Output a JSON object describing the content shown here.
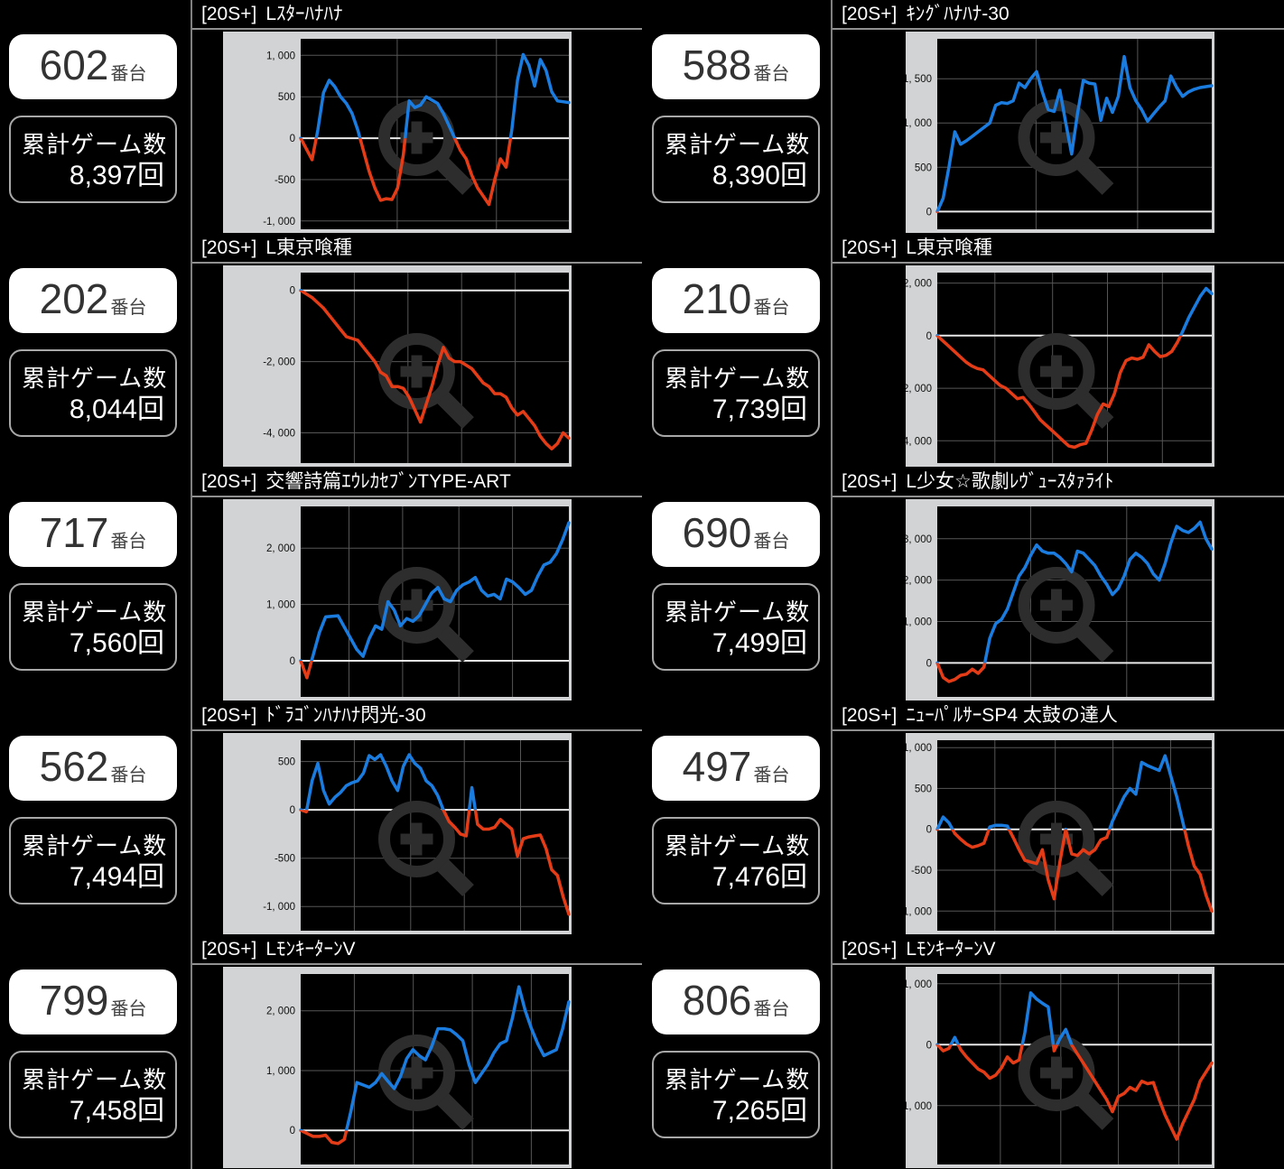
{
  "labels": {
    "unit_suffix": "番台",
    "games_label": "累計ゲーム数"
  },
  "colors": {
    "line_up": "#1b7ce0",
    "line_down": "#e53c18",
    "frame_bg": "#d2d3d4",
    "plot_bg": "#000000",
    "grid": "#565656",
    "zero_line": "#e8e8e8",
    "watermark": "#2d2d2d",
    "badge_bg": "#ffffff",
    "badge_text": "#333333",
    "panel_text": "#ffffff"
  },
  "panels": [
    {
      "machine_no": "602",
      "games_value": "8,397回",
      "title_tag": "[20S+]",
      "title_name": "Lｽﾀｰﾊﾅﾊﾅ",
      "chart_data": {
        "type": "line",
        "ylim": [
          -1100,
          1200
        ],
        "yticks": [
          1000,
          500,
          0,
          -500,
          -1000
        ],
        "ytick_labels": [
          "1, 000",
          "500",
          "0",
          "-500",
          "-1, 000"
        ],
        "vgrid": [
          0.36,
          0.73
        ],
        "color_rule": "blue_above_zero_red_below",
        "values": [
          0,
          -130,
          -260,
          100,
          550,
          700,
          620,
          500,
          420,
          300,
          100,
          -150,
          -400,
          -600,
          -750,
          -730,
          -740,
          -600,
          -200,
          450,
          370,
          400,
          500,
          460,
          420,
          300,
          150,
          0,
          -150,
          -250,
          -450,
          -600,
          -700,
          -800,
          -500,
          -250,
          -350,
          100,
          700,
          1010,
          880,
          630,
          950,
          820,
          560,
          450,
          440,
          430
        ]
      }
    },
    {
      "machine_no": "588",
      "games_value": "8,390回",
      "title_tag": "[20S+]",
      "title_name": "ｷﾝｸﾞﾊﾅﾊﾅ-30",
      "chart_data": {
        "type": "line",
        "ylim": [
          -200,
          1950
        ],
        "yticks": [
          1500,
          1000,
          500,
          0
        ],
        "ytick_labels": [
          "1, 500",
          "1, 000",
          "500",
          "0"
        ],
        "vgrid": [
          0.36,
          0.73
        ],
        "color_rule": "blue_above_zero_red_below",
        "values": [
          0,
          150,
          500,
          900,
          760,
          800,
          850,
          900,
          950,
          1000,
          1200,
          1230,
          1220,
          1250,
          1450,
          1400,
          1500,
          1580,
          1350,
          1150,
          1130,
          1370,
          1000,
          650,
          1100,
          1480,
          1450,
          1440,
          1030,
          1280,
          1120,
          1300,
          1750,
          1400,
          1250,
          1150,
          1020,
          1100,
          1180,
          1250,
          1530,
          1400,
          1300,
          1350,
          1380,
          1400,
          1410,
          1420
        ]
      }
    },
    {
      "machine_no": "202",
      "games_value": "8,044回",
      "title_tag": "[20S+]",
      "title_name": "L東京喰種",
      "chart_data": {
        "type": "line",
        "ylim": [
          -4850,
          500
        ],
        "yticks": [
          0,
          -2000,
          -4000
        ],
        "ytick_labels": [
          "0",
          "-2, 000",
          "-4, 000"
        ],
        "vgrid": [
          0.2,
          0.4,
          0.6,
          0.8
        ],
        "color_rule": "blue_above_zero_red_below",
        "values": [
          0,
          -100,
          -200,
          -350,
          -500,
          -700,
          -900,
          -1100,
          -1300,
          -1350,
          -1400,
          -1600,
          -1800,
          -2000,
          -2300,
          -2400,
          -2700,
          -2700,
          -2750,
          -3000,
          -3350,
          -3700,
          -3200,
          -2700,
          -2100,
          -1600,
          -1900,
          -2000,
          -2000,
          -2100,
          -2200,
          -2400,
          -2600,
          -2700,
          -2900,
          -2900,
          -3000,
          -3300,
          -3500,
          -3400,
          -3600,
          -3800,
          -4100,
          -4300,
          -4450,
          -4300,
          -4000,
          -4150
        ]
      }
    },
    {
      "machine_no": "210",
      "games_value": "7,739回",
      "title_tag": "[20S+]",
      "title_name": "L東京喰種",
      "chart_data": {
        "type": "line",
        "ylim": [
          -4850,
          2400
        ],
        "yticks": [
          2000,
          0,
          -2000,
          -4000
        ],
        "ytick_labels": [
          "2, 000",
          "0",
          "-2, 000",
          "-4, 000"
        ],
        "vgrid": [
          0.21,
          0.42,
          0.62,
          0.82
        ],
        "color_rule": "blue_above_zero_red_below",
        "values": [
          0,
          -200,
          -400,
          -600,
          -800,
          -1000,
          -1150,
          -1250,
          -1300,
          -1500,
          -1700,
          -1900,
          -2000,
          -2200,
          -2400,
          -2350,
          -2600,
          -2900,
          -3200,
          -3400,
          -3600,
          -3800,
          -4000,
          -4200,
          -4250,
          -4150,
          -4100,
          -3600,
          -3000,
          -2600,
          -2700,
          -2200,
          -1400,
          -950,
          -850,
          -900,
          -820,
          -350,
          -600,
          -800,
          -750,
          -600,
          -250,
          200,
          700,
          1100,
          1500,
          1800,
          1600
        ]
      }
    },
    {
      "machine_no": "717",
      "games_value": "7,560回",
      "title_tag": "[20S+]",
      "title_name": "交響詩篇ｴｳﾚｶｾﾌﾞﾝTYPE-ART",
      "chart_data": {
        "type": "line",
        "ylim": [
          -640,
          2740
        ],
        "yticks": [
          2000,
          1000,
          0
        ],
        "ytick_labels": [
          "2, 000",
          "1, 000",
          "0"
        ],
        "vgrid": [
          0.18,
          0.38,
          0.59,
          0.79
        ],
        "color_rule": "blue_above_zero_red_below",
        "values": [
          0,
          -300,
          100,
          500,
          780,
          790,
          800,
          600,
          400,
          200,
          80,
          400,
          620,
          560,
          1050,
          900,
          620,
          750,
          700,
          800,
          1000,
          1200,
          1300,
          1100,
          1050,
          1250,
          1350,
          1400,
          1480,
          1250,
          1150,
          1180,
          1100,
          1450,
          1400,
          1300,
          1180,
          1250,
          1500,
          1700,
          1750,
          1900,
          2150,
          2450
        ]
      }
    },
    {
      "machine_no": "690",
      "games_value": "7,499回",
      "title_tag": "[20S+]",
      "title_name": "L少女☆歌劇ﾚｳﾞｭｰｽﾀｧﾗｲﾄ",
      "chart_data": {
        "type": "line",
        "ylim": [
          -820,
          3780
        ],
        "yticks": [
          3000,
          2000,
          1000,
          0
        ],
        "ytick_labels": [
          "3, 000",
          "2, 000",
          "1, 000",
          "0"
        ],
        "vgrid": [
          0.34,
          0.69
        ],
        "color_rule": "blue_above_zero_red_below",
        "values": [
          0,
          -350,
          -450,
          -400,
          -300,
          -270,
          -150,
          -250,
          -100,
          600,
          950,
          1050,
          1300,
          1700,
          2100,
          2300,
          2600,
          2850,
          2700,
          2650,
          2650,
          2550,
          2400,
          2200,
          2700,
          2650,
          2500,
          2350,
          2100,
          1900,
          1650,
          1800,
          2100,
          2500,
          2650,
          2550,
          2400,
          2150,
          2000,
          2400,
          2900,
          3300,
          3200,
          3150,
          3250,
          3400,
          3000,
          2750
        ]
      }
    },
    {
      "machine_no": "562",
      "games_value": "7,494回",
      "title_tag": "[20S+]",
      "title_name": "ﾄﾞﾗｺﾞﾝﾊﾅﾊﾅ閃光-30",
      "chart_data": {
        "type": "line",
        "ylim": [
          -1250,
          720
        ],
        "yticks": [
          500,
          0,
          -500,
          -1000
        ],
        "ytick_labels": [
          "500",
          "0",
          "-500",
          "-1, 000"
        ],
        "vgrid": [
          0.2,
          0.41,
          0.61,
          0.82
        ],
        "color_rule": "blue_above_zero_red_below",
        "values": [
          0,
          -20,
          300,
          480,
          200,
          60,
          130,
          180,
          250,
          280,
          300,
          380,
          560,
          520,
          570,
          450,
          300,
          200,
          450,
          570,
          480,
          430,
          300,
          250,
          150,
          0,
          -120,
          -180,
          -250,
          -270,
          230,
          -150,
          -200,
          -200,
          -180,
          -100,
          -150,
          -200,
          -480,
          -300,
          -280,
          -270,
          -260,
          -400,
          -620,
          -680,
          -900,
          -1080
        ]
      }
    },
    {
      "machine_no": "497",
      "games_value": "7,476回",
      "title_tag": "[20S+]",
      "title_name": "ﾆｭｰﾊﾟﾙｻｰSP4 太鼓の達人",
      "chart_data": {
        "type": "line",
        "ylim": [
          -1240,
          1090
        ],
        "yticks": [
          1000,
          500,
          0,
          -500,
          -1000
        ],
        "ytick_labels": [
          "1, 000",
          "500",
          "0",
          "-500",
          "-1, 000"
        ],
        "vgrid": [
          0.21,
          0.43,
          0.64,
          0.85
        ],
        "color_rule": "blue_above_zero_red_below",
        "values": [
          0,
          150,
          80,
          -50,
          -120,
          -180,
          -220,
          -200,
          -170,
          30,
          50,
          50,
          40,
          -100,
          -250,
          -380,
          -400,
          -420,
          -250,
          -620,
          -850,
          -400,
          0,
          -300,
          -320,
          -250,
          -300,
          -250,
          -130,
          -100,
          100,
          250,
          400,
          500,
          430,
          820,
          780,
          750,
          720,
          900,
          650,
          400,
          100,
          -200,
          -450,
          -550,
          -800,
          -1000
        ]
      }
    },
    {
      "machine_no": "799",
      "games_value": "7,458回",
      "title_tag": "[20S+]",
      "title_name": "LﾓﾝｷｰﾀｰﾝV",
      "chart_data": {
        "type": "line",
        "ylim": [
          -570,
          2615
        ],
        "yticks": [
          2000,
          1000,
          0
        ],
        "ytick_labels": [
          "2, 000",
          "1, 000",
          "0"
        ],
        "vgrid": [
          0.2,
          0.42,
          0.64,
          0.86
        ],
        "color_rule": "blue_above_zero_red_below",
        "values": [
          0,
          -50,
          -100,
          -100,
          -80,
          -200,
          -220,
          -150,
          300,
          800,
          760,
          720,
          800,
          950,
          820,
          700,
          900,
          1200,
          1350,
          1250,
          1180,
          1400,
          1700,
          1700,
          1680,
          1600,
          1500,
          1100,
          800,
          950,
          1100,
          1300,
          1450,
          1500,
          1900,
          2400,
          2000,
          1700,
          1450,
          1250,
          1300,
          1350,
          1700,
          2150
        ]
      }
    },
    {
      "machine_no": "806",
      "games_value": "7,265回",
      "title_tag": "[20S+]",
      "title_name": "LﾓﾝｷｰﾀｰﾝV",
      "chart_data": {
        "type": "line",
        "ylim": [
          -1965,
          1160
        ],
        "yticks": [
          1000,
          0,
          -1000
        ],
        "ytick_labels": [
          "1, 000",
          "0",
          "-1, 000"
        ],
        "vgrid": [
          0.23,
          0.45,
          0.66,
          0.88
        ],
        "color_rule": "blue_above_zero_red_below",
        "values": [
          0,
          -100,
          -60,
          120,
          -80,
          -200,
          -300,
          -400,
          -450,
          -550,
          -500,
          -380,
          -200,
          -300,
          -250,
          200,
          850,
          750,
          680,
          620,
          -100,
          100,
          250,
          0,
          -150,
          -300,
          -450,
          -600,
          -750,
          -900,
          -1100,
          -850,
          -800,
          -700,
          -750,
          -600,
          -640,
          -620,
          -900,
          -1150,
          -1350,
          -1550,
          -1300,
          -1100,
          -900,
          -600,
          -450,
          -300
        ]
      }
    }
  ]
}
